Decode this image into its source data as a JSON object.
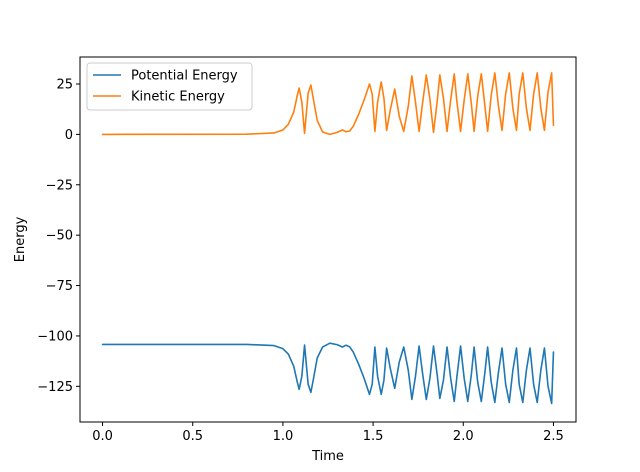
{
  "chart_data": {
    "type": "line",
    "title": "",
    "xlabel": "Time",
    "ylabel": "Energy",
    "xlim": [
      -0.125,
      2.625
    ],
    "ylim": [
      -142.7,
      38.4
    ],
    "x_ticks": [
      0.0,
      0.5,
      1.0,
      1.5,
      2.0,
      2.5
    ],
    "x_tick_labels": [
      "0.0",
      "0.5",
      "1.0",
      "1.5",
      "2.0",
      "2.5"
    ],
    "y_ticks": [
      25,
      0,
      -25,
      -50,
      -75,
      -100,
      -125
    ],
    "y_tick_labels": [
      "25",
      "0",
      "−25",
      "−50",
      "−75",
      "−100",
      "−125"
    ],
    "grid": false,
    "legend_position": "top-left",
    "x": [
      0.0,
      0.8,
      0.95,
      1.0,
      1.03,
      1.06,
      1.08,
      1.09,
      1.105,
      1.12,
      1.14,
      1.155,
      1.17,
      1.19,
      1.22,
      1.26,
      1.3,
      1.33,
      1.35,
      1.37,
      1.39,
      1.42,
      1.45,
      1.48,
      1.495,
      1.51,
      1.525,
      1.545,
      1.56,
      1.575,
      1.595,
      1.62,
      1.645,
      1.67,
      1.695,
      1.715,
      1.735,
      1.755,
      1.775,
      1.795,
      1.815,
      1.835,
      1.855,
      1.87,
      1.89,
      1.91,
      1.93,
      1.95,
      1.965,
      1.985,
      2.005,
      2.025,
      2.045,
      2.06,
      2.08,
      2.1,
      2.12,
      2.135,
      2.155,
      2.175,
      2.195,
      2.215,
      2.235,
      2.255,
      2.275,
      2.295,
      2.31,
      2.33,
      2.35,
      2.37,
      2.39,
      2.41,
      2.43,
      2.45,
      2.47,
      2.49,
      2.5
    ],
    "series": [
      {
        "name": "Potential Energy",
        "color": "#1f77b4",
        "values": [
          -104.2,
          -104.2,
          -104.8,
          -106.3,
          -109,
          -115,
          -123,
          -126.5,
          -120,
          -104.5,
          -124,
          -128,
          -121,
          -111,
          -105.5,
          -103.6,
          -104.3,
          -105.5,
          -104.6,
          -105.4,
          -108,
          -114,
          -121,
          -129,
          -124,
          -105.5,
          -120,
          -129,
          -122,
          -106,
          -116,
          -126,
          -113,
          -105.5,
          -117,
          -131.5,
          -120,
          -105,
          -119,
          -131.5,
          -121,
          -105,
          -119,
          -131,
          -122,
          -105.5,
          -121,
          -132.5,
          -120,
          -105,
          -121,
          -132.5,
          -119,
          -105.5,
          -123,
          -132.5,
          -118,
          -105.5,
          -123,
          -133,
          -118,
          -106,
          -124,
          -133,
          -117,
          -106,
          -124,
          -133,
          -117,
          -106,
          -124,
          -133,
          -117,
          -106,
          -125,
          -133.5,
          -108
        ]
      },
      {
        "name": "Kinetic Energy",
        "color": "#ff7f0e",
        "values": [
          0.0,
          0.1,
          0.7,
          2.2,
          5,
          11,
          19.5,
          23,
          16,
          0.5,
          20.5,
          24.5,
          17,
          7,
          1.2,
          0,
          1,
          2.2,
          1.3,
          1.7,
          4,
          10,
          17,
          25,
          20,
          1.5,
          16,
          26,
          18,
          2,
          12,
          22.5,
          9,
          1.5,
          14,
          29,
          16,
          1.5,
          16,
          29.5,
          17.5,
          1,
          16,
          29.5,
          18,
          1.5,
          17,
          30,
          16,
          1.5,
          17,
          30,
          15,
          1.5,
          19,
          30,
          14,
          1.5,
          19.5,
          30.5,
          14,
          2,
          20,
          30.5,
          13,
          2,
          20,
          30.5,
          13,
          2,
          20,
          30.5,
          13,
          2,
          21,
          30.5,
          4.5
        ]
      }
    ]
  }
}
